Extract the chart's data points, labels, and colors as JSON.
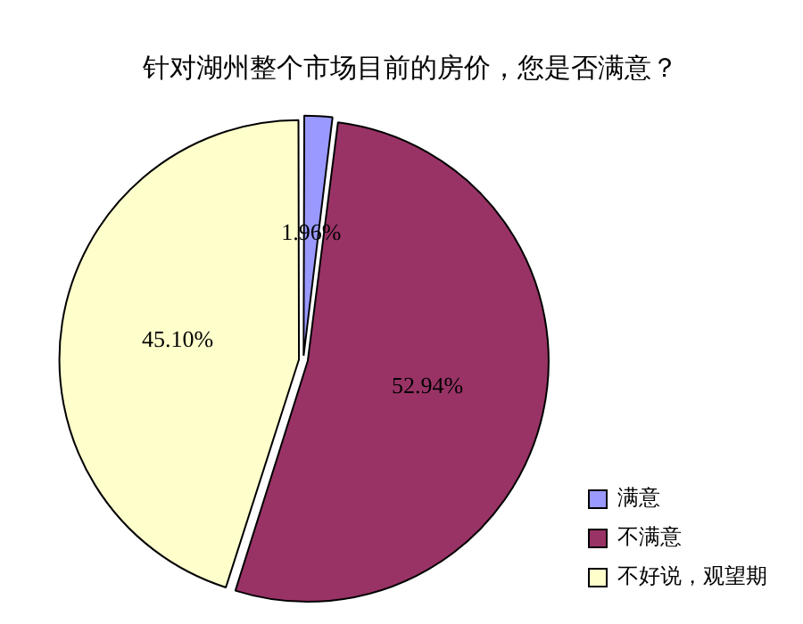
{
  "chart_data": {
    "type": "pie",
    "title": "针对湖州整个市场目前的房价，您是否满意？",
    "categories": [
      "满意",
      "不满意",
      "不好说，观望期"
    ],
    "values": [
      1.96,
      52.94,
      45.1
    ],
    "value_labels": [
      "1.96%",
      "52.94%",
      "45.10%"
    ],
    "colors": [
      "#9999ff",
      "#993366",
      "#ffffcc"
    ],
    "legend": "bottom right"
  }
}
